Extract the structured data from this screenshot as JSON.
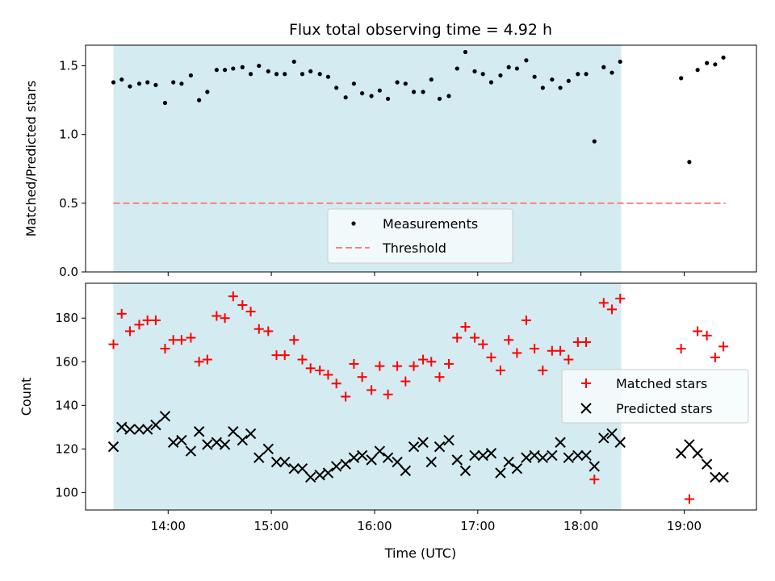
{
  "chart_data": {
    "type": "scatter",
    "title": "Flux total observing time = 4.92 h",
    "xlabel": "Time (UTC)",
    "x_ticks": [
      "14:00",
      "15:00",
      "16:00",
      "17:00",
      "18:00",
      "19:00"
    ],
    "x_tick_hours": [
      14,
      15,
      16,
      17,
      18,
      19
    ],
    "xlim_hours": [
      13.2,
      19.7
    ],
    "shaded_region_hours": [
      13.47,
      18.39
    ],
    "shaded_color": "#d4ebf1",
    "colors": {
      "matched": "#ff0000",
      "predicted": "#000000",
      "threshold": "#ff7f7f",
      "measurement": "#000000"
    },
    "panels": [
      {
        "ylabel": "Matched/Predicted stars",
        "ylim": [
          0,
          1.65
        ],
        "y_ticks": [
          0.0,
          0.5,
          1.0,
          1.5
        ],
        "y_tick_labels": [
          "0.0",
          "0.5",
          "1.0",
          "1.5"
        ],
        "legend": {
          "placement": "lower-center",
          "entries": [
            "Measurements",
            "Threshold"
          ]
        },
        "threshold": {
          "value": 0.5,
          "x_range_hours": [
            13.47,
            19.4
          ]
        },
        "series": [
          {
            "name": "Measurements",
            "marker": "dot",
            "points": [
              [
                13.47,
                1.38
              ],
              [
                13.55,
                1.4
              ],
              [
                13.63,
                1.35
              ],
              [
                13.72,
                1.37
              ],
              [
                13.8,
                1.38
              ],
              [
                13.88,
                1.36
              ],
              [
                13.97,
                1.23
              ],
              [
                14.05,
                1.38
              ],
              [
                14.13,
                1.37
              ],
              [
                14.22,
                1.43
              ],
              [
                14.3,
                1.25
              ],
              [
                14.38,
                1.31
              ],
              [
                14.47,
                1.47
              ],
              [
                14.55,
                1.47
              ],
              [
                14.63,
                1.48
              ],
              [
                14.72,
                1.49
              ],
              [
                14.8,
                1.44
              ],
              [
                14.88,
                1.5
              ],
              [
                14.97,
                1.46
              ],
              [
                15.05,
                1.44
              ],
              [
                15.13,
                1.44
              ],
              [
                15.22,
                1.53
              ],
              [
                15.3,
                1.44
              ],
              [
                15.38,
                1.46
              ],
              [
                15.47,
                1.44
              ],
              [
                15.55,
                1.42
              ],
              [
                15.63,
                1.34
              ],
              [
                15.72,
                1.27
              ],
              [
                15.8,
                1.37
              ],
              [
                15.88,
                1.3
              ],
              [
                15.97,
                1.28
              ],
              [
                16.05,
                1.32
              ],
              [
                16.13,
                1.26
              ],
              [
                16.22,
                1.38
              ],
              [
                16.3,
                1.37
              ],
              [
                16.38,
                1.31
              ],
              [
                16.47,
                1.31
              ],
              [
                16.55,
                1.4
              ],
              [
                16.63,
                1.26
              ],
              [
                16.72,
                1.28
              ],
              [
                16.8,
                1.48
              ],
              [
                16.88,
                1.6
              ],
              [
                16.97,
                1.46
              ],
              [
                17.05,
                1.44
              ],
              [
                17.13,
                1.38
              ],
              [
                17.22,
                1.43
              ],
              [
                17.3,
                1.49
              ],
              [
                17.38,
                1.48
              ],
              [
                17.47,
                1.54
              ],
              [
                17.55,
                1.42
              ],
              [
                17.63,
                1.34
              ],
              [
                17.72,
                1.4
              ],
              [
                17.8,
                1.34
              ],
              [
                17.88,
                1.39
              ],
              [
                17.97,
                1.44
              ],
              [
                18.05,
                1.44
              ],
              [
                18.13,
                0.95
              ],
              [
                18.22,
                1.49
              ],
              [
                18.3,
                1.45
              ],
              [
                18.38,
                1.53
              ],
              [
                18.97,
                1.41
              ],
              [
                19.05,
                0.8
              ],
              [
                19.13,
                1.47
              ],
              [
                19.22,
                1.52
              ],
              [
                19.3,
                1.51
              ],
              [
                19.38,
                1.56
              ]
            ]
          },
          {
            "name": "Threshold",
            "marker": "dashed-line"
          }
        ]
      },
      {
        "ylabel": "Count",
        "ylim": [
          92,
          196
        ],
        "y_ticks": [
          100,
          120,
          140,
          160,
          180
        ],
        "y_tick_labels": [
          "100",
          "120",
          "140",
          "160",
          "180"
        ],
        "legend": {
          "placement": "center-right",
          "entries": [
            "Matched stars",
            "Predicted stars"
          ]
        },
        "series": [
          {
            "name": "Matched stars",
            "marker": "plus",
            "points": [
              [
                13.47,
                168
              ],
              [
                13.55,
                182
              ],
              [
                13.63,
                174
              ],
              [
                13.72,
                177
              ],
              [
                13.8,
                179
              ],
              [
                13.88,
                179
              ],
              [
                13.97,
                166
              ],
              [
                14.05,
                170
              ],
              [
                14.13,
                170
              ],
              [
                14.22,
                171
              ],
              [
                14.3,
                160
              ],
              [
                14.38,
                161
              ],
              [
                14.47,
                181
              ],
              [
                14.55,
                180
              ],
              [
                14.63,
                190
              ],
              [
                14.72,
                186
              ],
              [
                14.8,
                183
              ],
              [
                14.88,
                175
              ],
              [
                14.97,
                174
              ],
              [
                15.05,
                163
              ],
              [
                15.13,
                163
              ],
              [
                15.22,
                170
              ],
              [
                15.3,
                161
              ],
              [
                15.38,
                157
              ],
              [
                15.47,
                156
              ],
              [
                15.55,
                154
              ],
              [
                15.63,
                150
              ],
              [
                15.72,
                144
              ],
              [
                15.8,
                159
              ],
              [
                15.88,
                153
              ],
              [
                15.97,
                147
              ],
              [
                16.05,
                158
              ],
              [
                16.13,
                145
              ],
              [
                16.22,
                158
              ],
              [
                16.3,
                151
              ],
              [
                16.38,
                158
              ],
              [
                16.47,
                161
              ],
              [
                16.55,
                160
              ],
              [
                16.63,
                153
              ],
              [
                16.72,
                159
              ],
              [
                16.8,
                171
              ],
              [
                16.88,
                176
              ],
              [
                16.97,
                171
              ],
              [
                17.05,
                168
              ],
              [
                17.13,
                162
              ],
              [
                17.22,
                156
              ],
              [
                17.3,
                170
              ],
              [
                17.38,
                164
              ],
              [
                17.47,
                179
              ],
              [
                17.55,
                166
              ],
              [
                17.63,
                156
              ],
              [
                17.72,
                165
              ],
              [
                17.8,
                165
              ],
              [
                17.88,
                161
              ],
              [
                17.97,
                169
              ],
              [
                18.05,
                169
              ],
              [
                18.13,
                106
              ],
              [
                18.22,
                187
              ],
              [
                18.3,
                184
              ],
              [
                18.38,
                189
              ],
              [
                18.97,
                166
              ],
              [
                19.05,
                97
              ],
              [
                19.13,
                174
              ],
              [
                19.22,
                172
              ],
              [
                19.3,
                162
              ],
              [
                19.38,
                167
              ]
            ]
          },
          {
            "name": "Predicted stars",
            "marker": "x",
            "points": [
              [
                13.47,
                121
              ],
              [
                13.55,
                130
              ],
              [
                13.63,
                129
              ],
              [
                13.72,
                129
              ],
              [
                13.8,
                129
              ],
              [
                13.88,
                131
              ],
              [
                13.97,
                135
              ],
              [
                14.05,
                123
              ],
              [
                14.13,
                124
              ],
              [
                14.22,
                119
              ],
              [
                14.3,
                128
              ],
              [
                14.38,
                122
              ],
              [
                14.47,
                123
              ],
              [
                14.55,
                122
              ],
              [
                14.63,
                128
              ],
              [
                14.72,
                124
              ],
              [
                14.8,
                127
              ],
              [
                14.88,
                116
              ],
              [
                14.97,
                120
              ],
              [
                15.05,
                114
              ],
              [
                15.13,
                114
              ],
              [
                15.22,
                111
              ],
              [
                15.3,
                111
              ],
              [
                15.38,
                107
              ],
              [
                15.47,
                108
              ],
              [
                15.55,
                109
              ],
              [
                15.63,
                112
              ],
              [
                15.72,
                113
              ],
              [
                15.8,
                116
              ],
              [
                15.88,
                117
              ],
              [
                15.97,
                115
              ],
              [
                16.05,
                119
              ],
              [
                16.13,
                116
              ],
              [
                16.22,
                114
              ],
              [
                16.3,
                110
              ],
              [
                16.38,
                121
              ],
              [
                16.47,
                123
              ],
              [
                16.55,
                114
              ],
              [
                16.63,
                121
              ],
              [
                16.72,
                124
              ],
              [
                16.8,
                115
              ],
              [
                16.88,
                110
              ],
              [
                16.97,
                117
              ],
              [
                17.05,
                117
              ],
              [
                17.13,
                118
              ],
              [
                17.22,
                109
              ],
              [
                17.3,
                114
              ],
              [
                17.38,
                111
              ],
              [
                17.47,
                116
              ],
              [
                17.55,
                117
              ],
              [
                17.63,
                116
              ],
              [
                17.72,
                117
              ],
              [
                17.8,
                123
              ],
              [
                17.88,
                116
              ],
              [
                17.97,
                117
              ],
              [
                18.05,
                117
              ],
              [
                18.13,
                112
              ],
              [
                18.22,
                125
              ],
              [
                18.3,
                127
              ],
              [
                18.38,
                123
              ],
              [
                18.97,
                118
              ],
              [
                19.05,
                122
              ],
              [
                19.13,
                118
              ],
              [
                19.22,
                113
              ],
              [
                19.3,
                107
              ],
              [
                19.38,
                107
              ]
            ]
          }
        ]
      }
    ]
  }
}
